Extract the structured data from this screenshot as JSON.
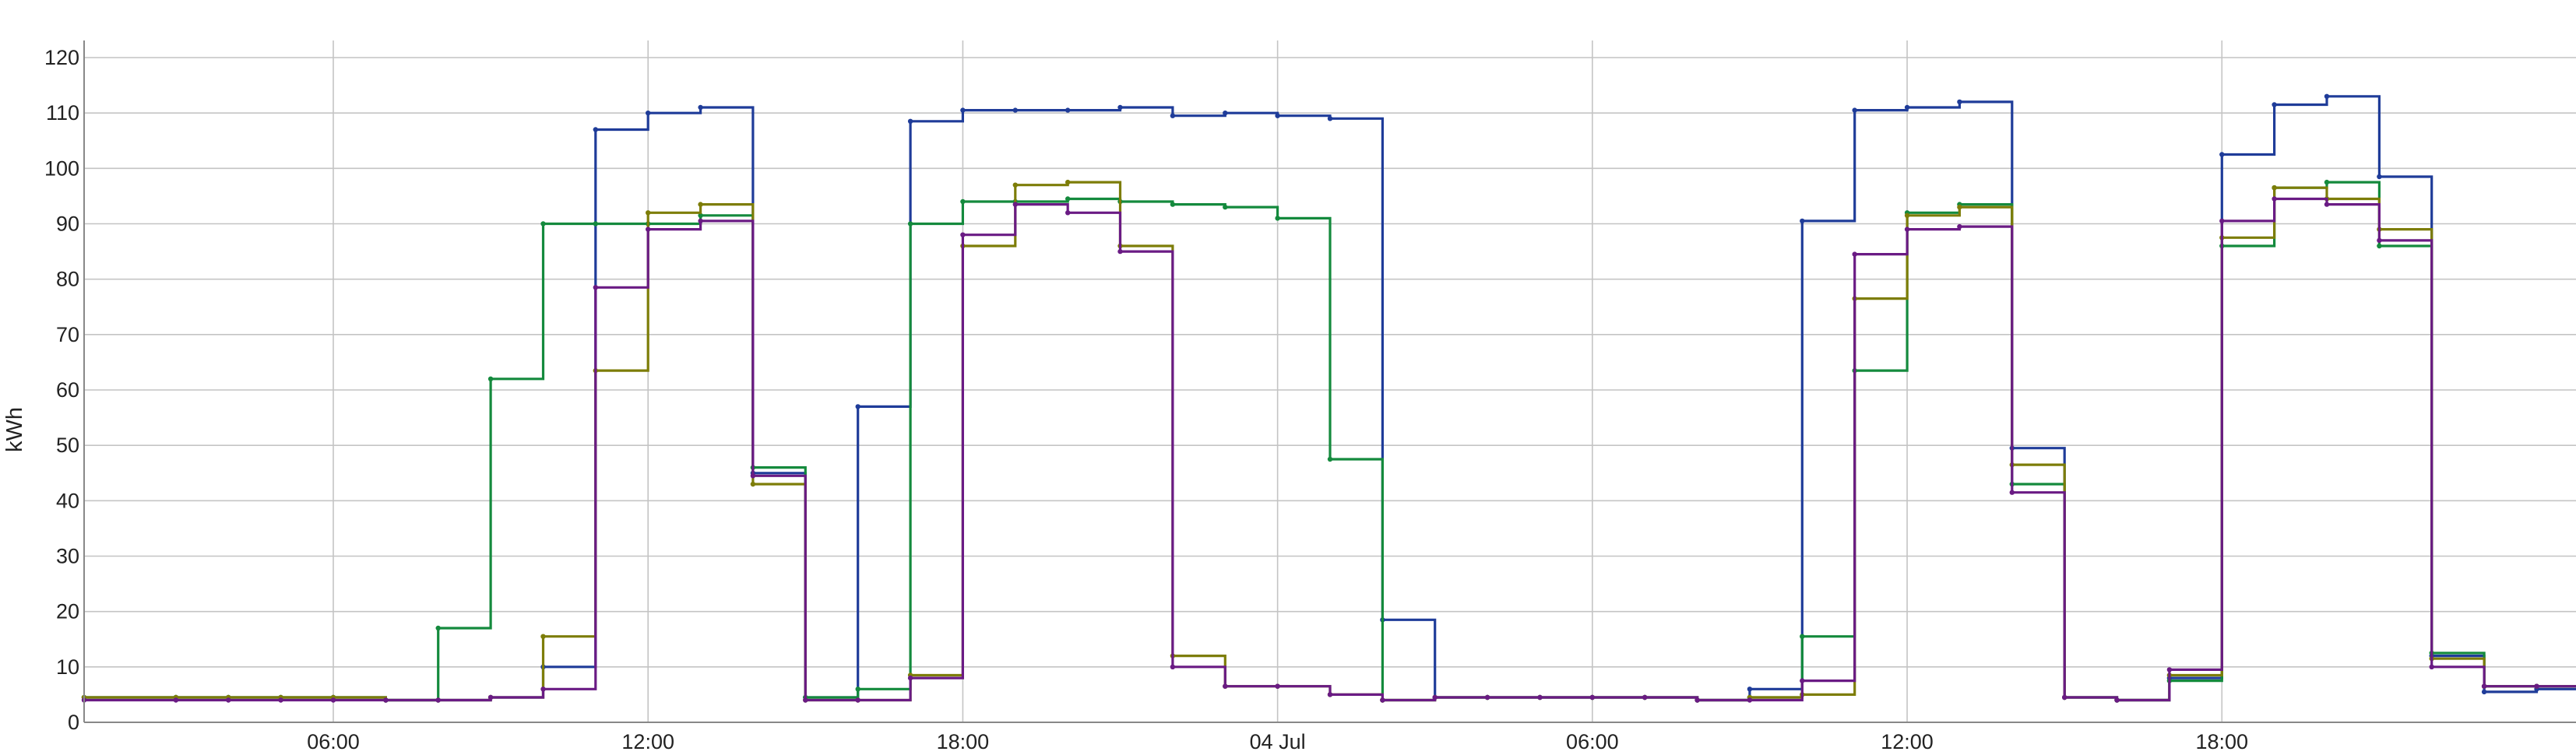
{
  "chart_data": {
    "type": "line",
    "step": "post",
    "title": "",
    "xlabel": "",
    "ylabel": "kWh",
    "ylim": [
      0,
      120
    ],
    "yticks": [
      0,
      10,
      20,
      30,
      40,
      50,
      60,
      70,
      80,
      90,
      100,
      110,
      120
    ],
    "xlim": [
      0,
      47.5
    ],
    "x_unit": "hours since 03 Jul 00:00 (axis starts ~01:15)",
    "x_grid_hours": [
      6,
      12,
      18,
      24,
      30,
      36,
      42
    ],
    "xtick_labels": [
      "06:00",
      "12:00",
      "18:00",
      "04 Jul",
      "06:00",
      "12:00",
      "18:00"
    ],
    "grid": true,
    "legend": "none",
    "x": [
      0,
      1.75,
      2.75,
      3.75,
      4.75,
      5.75,
      6.75,
      7.75,
      8.75,
      9.75,
      10.75,
      11.75,
      12.75,
      13.75,
      14.75,
      15.75,
      16.75,
      17.75,
      18.75,
      19.75,
      20.75,
      21.75,
      22.75,
      23.75,
      24.75,
      25.75,
      26.75,
      27.75,
      28.75,
      29.75,
      30.75,
      31.75,
      32.75,
      33.75,
      34.75,
      35.75,
      36.75,
      37.75,
      38.75,
      39.75,
      40.75,
      41.75,
      42.75,
      43.75,
      44.75,
      45.75,
      46.75
    ],
    "series": [
      {
        "name": "blue",
        "color": "#1f3c99",
        "values": [
          4.5,
          4.5,
          4.5,
          4.5,
          4.5,
          4,
          4,
          4.5,
          10,
          107,
          110,
          111,
          45,
          4.5,
          57,
          108.5,
          110.5,
          110.5,
          110.5,
          111,
          109.5,
          110,
          109.5,
          109,
          18.5,
          4.5,
          4.5,
          4.5,
          4.5,
          4.5,
          4,
          6,
          90.5,
          110.5,
          111,
          112,
          49.5,
          4.5,
          4,
          8,
          102.5,
          111.5,
          113,
          98.5,
          12,
          5.5,
          6
        ]
      },
      {
        "name": "green",
        "color": "#148a3d",
        "values": [
          4.5,
          4.5,
          4.5,
          4.5,
          4.5,
          4,
          17,
          62,
          90,
          90,
          90,
          91.5,
          46,
          4.5,
          6,
          90,
          94,
          94,
          94.5,
          94,
          93.5,
          93,
          91,
          47.5,
          4,
          4.5,
          4.5,
          4.5,
          4.5,
          4.5,
          4,
          4.5,
          15.5,
          63.5,
          92,
          93.5,
          43,
          4.5,
          4,
          7.5,
          86,
          96.5,
          97.5,
          86,
          12.5,
          6.5,
          6.5
        ]
      },
      {
        "name": "olive",
        "color": "#7d7d08",
        "values": [
          4.5,
          4.5,
          4.5,
          4.5,
          4.5,
          4,
          4,
          4.5,
          15.5,
          63.5,
          92,
          93.5,
          43,
          4,
          4,
          8.5,
          86,
          97,
          97.5,
          86,
          12,
          6.5,
          6.5,
          5,
          4,
          4.5,
          4.5,
          4.5,
          4.5,
          4.5,
          4,
          4.5,
          5,
          76.5,
          91.5,
          93,
          46.5,
          4.5,
          4,
          8.5,
          87.5,
          96.5,
          94.5,
          89,
          11.5,
          6.5,
          6.5
        ]
      },
      {
        "name": "purple",
        "color": "#6a1b84",
        "values": [
          4,
          4,
          4,
          4,
          4,
          4,
          4,
          4.5,
          6,
          78.5,
          89,
          90.5,
          44.5,
          4,
          4,
          8,
          88,
          93.5,
          92,
          85,
          10,
          6.5,
          6.5,
          5,
          4,
          4.5,
          4.5,
          4.5,
          4.5,
          4.5,
          4,
          4,
          7.5,
          84.5,
          89,
          89.5,
          41.5,
          4.5,
          4,
          9.5,
          90.5,
          94.5,
          93.5,
          87,
          10,
          6.5,
          6.5
        ]
      }
    ]
  }
}
